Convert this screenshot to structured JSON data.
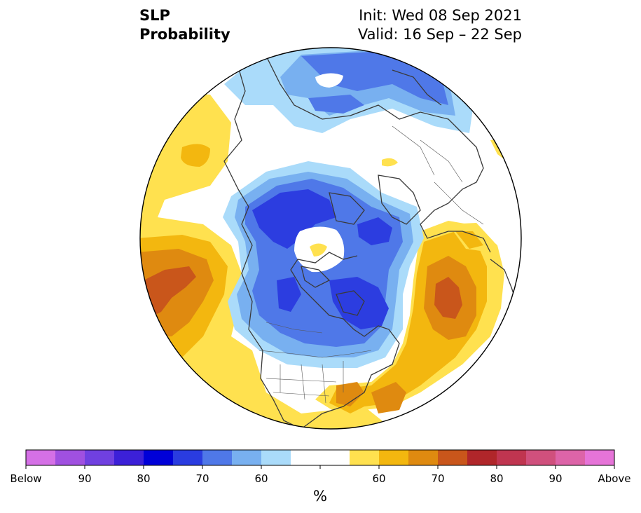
{
  "title": {
    "left": [
      "SLP",
      "Probability"
    ],
    "right": [
      "Init: Wed 08 Sep 2021",
      "Valid: 16 Sep – 22 Sep"
    ]
  },
  "map": {
    "projection": "north-polar-stereographic",
    "description_features": [
      "coastlines",
      "country borders",
      "US state borders"
    ]
  },
  "colorbar": {
    "units": "%",
    "colors": [
      "#d570e6",
      "#a050e0",
      "#7040e0",
      "#3c20d8",
      "#0000d8",
      "#2a3ce0",
      "#4f78e8",
      "#78b0f0",
      "#aadbfa",
      "#ffffff",
      "#ffffff",
      "#ffe14f",
      "#f3b70f",
      "#df8a10",
      "#c9561b",
      "#b0262a",
      "#c03550",
      "#d0507d",
      "#dd64a8",
      "#e674d8"
    ],
    "labels": [
      "Below",
      "90",
      "80",
      "70",
      "60",
      "60",
      "70",
      "80",
      "90",
      "Above"
    ]
  },
  "colors": {
    "strong_below": "#2c3de0",
    "below": "#4f78e8",
    "weak_below": "#78b0f0",
    "slight_below": "#aadbfa",
    "slight_above": "#ffe14f",
    "above": "#f3b70f",
    "strong_above": "#df8a10",
    "very_above": "#c9561b"
  }
}
